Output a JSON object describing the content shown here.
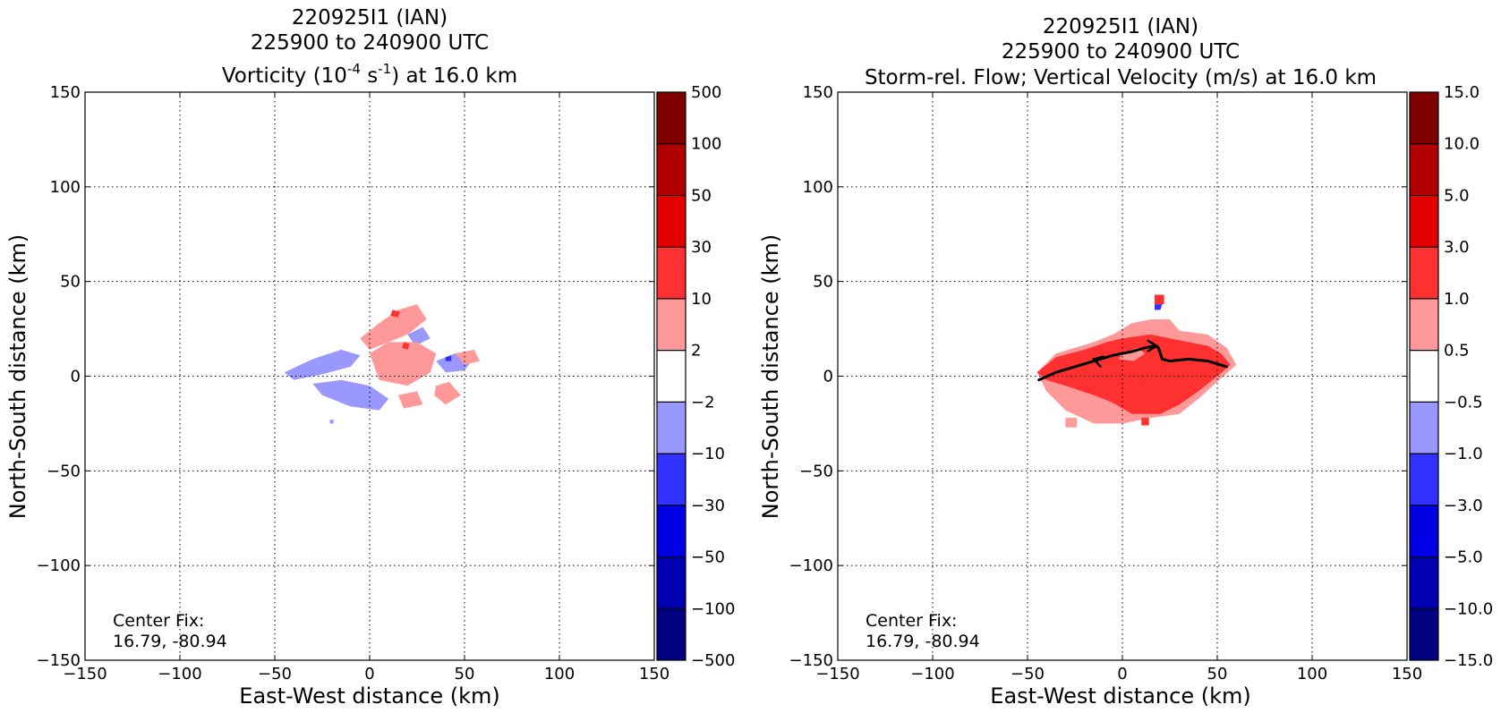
{
  "chart_data": [
    {
      "type": "heatmap",
      "title_lines": [
        "220925I1 (IAN)",
        "225900 to 240900 UTC"
      ],
      "title_line3": {
        "pre": "Vorticity (10",
        "sup1": "-4",
        "mid": " s",
        "sup2": "-1",
        "post": ") at 16.0 km"
      },
      "xlabel": "East-West distance (km)",
      "ylabel": "North-South distance (km)",
      "xlim": [
        -150,
        150
      ],
      "ylim": [
        -150,
        150
      ],
      "xticks": [
        -150,
        -100,
        -50,
        0,
        50,
        100,
        150
      ],
      "yticks": [
        -150,
        -100,
        -50,
        0,
        50,
        100,
        150
      ],
      "grid": true,
      "annotation": [
        "Center Fix:",
        "16.79, -80.94"
      ],
      "colorbar_labels": [
        "500",
        "100",
        "50",
        "30",
        "10",
        "2",
        "−2",
        "−10",
        "−30",
        "−50",
        "−100",
        "−500"
      ],
      "regions": [
        {
          "color": "light-blue",
          "points": [
            [
              -45,
              2
            ],
            [
              -30,
              9
            ],
            [
              -15,
              14
            ],
            [
              -5,
              11
            ],
            [
              -10,
              5
            ],
            [
              -25,
              1
            ],
            [
              -40,
              -2
            ]
          ]
        },
        {
          "color": "light-blue",
          "points": [
            [
              -30,
              -4
            ],
            [
              -15,
              -2
            ],
            [
              0,
              -5
            ],
            [
              10,
              -12
            ],
            [
              5,
              -18
            ],
            [
              -10,
              -16
            ],
            [
              -25,
              -10
            ]
          ]
        },
        {
          "color": "light-blue",
          "points": [
            [
              35,
              8
            ],
            [
              45,
              12
            ],
            [
              55,
              10
            ],
            [
              50,
              3
            ],
            [
              40,
              2
            ]
          ]
        },
        {
          "color": "light-blue",
          "points": [
            [
              20,
              22
            ],
            [
              28,
              26
            ],
            [
              32,
              20
            ],
            [
              24,
              16
            ]
          ]
        },
        {
          "color": "light-pink",
          "points": [
            [
              -5,
              20
            ],
            [
              5,
              28
            ],
            [
              15,
              35
            ],
            [
              25,
              38
            ],
            [
              30,
              30
            ],
            [
              20,
              22
            ],
            [
              10,
              18
            ],
            [
              0,
              14
            ]
          ]
        },
        {
          "color": "light-pink",
          "points": [
            [
              0,
              12
            ],
            [
              10,
              18
            ],
            [
              25,
              18
            ],
            [
              35,
              12
            ],
            [
              32,
              2
            ],
            [
              20,
              -5
            ],
            [
              5,
              -2
            ]
          ]
        },
        {
          "color": "light-pink",
          "points": [
            [
              35,
              -5
            ],
            [
              42,
              -3
            ],
            [
              48,
              -10
            ],
            [
              40,
              -15
            ],
            [
              34,
              -10
            ]
          ]
        },
        {
          "color": "light-pink",
          "points": [
            [
              45,
              12
            ],
            [
              55,
              14
            ],
            [
              58,
              8
            ],
            [
              50,
              6
            ]
          ]
        },
        {
          "color": "light-pink",
          "points": [
            [
              15,
              -10
            ],
            [
              25,
              -8
            ],
            [
              28,
              -15
            ],
            [
              18,
              -17
            ]
          ]
        },
        {
          "color": "red",
          "points": [
            [
              12,
              35
            ],
            [
              16,
              34
            ],
            [
              15,
              31
            ],
            [
              11,
              32
            ]
          ]
        },
        {
          "color": "red",
          "points": [
            [
              18,
              18
            ],
            [
              21,
              17
            ],
            [
              20,
              14
            ],
            [
              17,
              15
            ]
          ]
        },
        {
          "color": "blue",
          "points": [
            [
              40,
              10
            ],
            [
              43,
              11
            ],
            [
              43,
              8
            ],
            [
              40,
              8
            ]
          ]
        },
        {
          "color": "light-blue",
          "points": [
            [
              -21,
              -23
            ],
            [
              -19,
              -23
            ],
            [
              -19,
              -25
            ],
            [
              -21,
              -25
            ]
          ]
        }
      ]
    },
    {
      "type": "heatmap",
      "title_lines": [
        "220925I1 (IAN)",
        "225900 to 240900 UTC",
        "Storm-rel. Flow; Vertical Velocity (m/s) at 16.0 km"
      ],
      "xlabel": "East-West distance (km)",
      "ylabel": "North-South distance (km)",
      "xlim": [
        -150,
        150
      ],
      "ylim": [
        -150,
        150
      ],
      "xticks": [
        -150,
        -100,
        -50,
        0,
        50,
        100,
        150
      ],
      "yticks": [
        -150,
        -100,
        -50,
        0,
        50,
        100,
        150
      ],
      "grid": true,
      "annotation": [
        "Center Fix:",
        "16.79, -80.94"
      ],
      "colorbar_labels": [
        "15.0",
        "10.0",
        "5.0",
        "3.0",
        "1.0",
        "0.5",
        "−0.5",
        "−1.0",
        "−3.0",
        "−5.0",
        "−10.0",
        "−15.0"
      ],
      "regions": [
        {
          "color": "light-pink",
          "points": [
            [
              -45,
              2
            ],
            [
              -35,
              12
            ],
            [
              -15,
              18
            ],
            [
              -5,
              22
            ],
            [
              5,
              28
            ],
            [
              15,
              30
            ],
            [
              25,
              30
            ],
            [
              30,
              24
            ],
            [
              45,
              22
            ],
            [
              55,
              15
            ],
            [
              60,
              6
            ],
            [
              50,
              -3
            ],
            [
              40,
              -12
            ],
            [
              30,
              -20
            ],
            [
              15,
              -22
            ],
            [
              0,
              -25
            ],
            [
              -15,
              -25
            ],
            [
              -30,
              -18
            ],
            [
              -40,
              -8
            ]
          ]
        },
        {
          "color": "red",
          "points": [
            [
              -45,
              2
            ],
            [
              -35,
              10
            ],
            [
              -20,
              14
            ],
            [
              -8,
              18
            ],
            [
              0,
              20
            ],
            [
              15,
              22
            ],
            [
              25,
              20
            ],
            [
              35,
              18
            ],
            [
              45,
              16
            ],
            [
              52,
              12
            ],
            [
              57,
              6
            ],
            [
              50,
              0
            ],
            [
              40,
              -8
            ],
            [
              30,
              -15
            ],
            [
              20,
              -20
            ],
            [
              5,
              -20
            ],
            [
              -5,
              -14
            ],
            [
              -15,
              -10
            ],
            [
              -30,
              -5
            ],
            [
              -40,
              -2
            ]
          ]
        },
        {
          "color": "light-pink",
          "points": [
            [
              0,
              12
            ],
            [
              8,
              15
            ],
            [
              12,
              12
            ],
            [
              6,
              8
            ],
            [
              -2,
              9
            ]
          ]
        },
        {
          "color": "red",
          "points": [
            [
              17,
              43
            ],
            [
              22,
              43
            ],
            [
              22,
              38
            ],
            [
              17,
              38
            ]
          ]
        },
        {
          "color": "blue",
          "points": [
            [
              17,
              38
            ],
            [
              21,
              38
            ],
            [
              20,
              35
            ],
            [
              17,
              35
            ]
          ]
        },
        {
          "color": "light-pink",
          "points": [
            [
              -30,
              -22
            ],
            [
              -24,
              -22
            ],
            [
              -24,
              -27
            ],
            [
              -30,
              -27
            ]
          ]
        },
        {
          "color": "red",
          "points": [
            [
              10,
              -22
            ],
            [
              14,
              -22
            ],
            [
              14,
              -26
            ],
            [
              10,
              -26
            ]
          ]
        }
      ],
      "streamline": {
        "points": [
          [
            -44,
            -2
          ],
          [
            -35,
            2
          ],
          [
            -25,
            5
          ],
          [
            -15,
            8
          ],
          [
            -5,
            11
          ],
          [
            5,
            13
          ],
          [
            12,
            15
          ],
          [
            17,
            16
          ],
          [
            19,
            15
          ],
          [
            20,
            12
          ],
          [
            21,
            9
          ],
          [
            25,
            8
          ],
          [
            35,
            9
          ],
          [
            45,
            8
          ],
          [
            55,
            5
          ]
        ],
        "arrows": [
          [
            -15,
            9,
            -1,
            0.3
          ],
          [
            18,
            16,
            1,
            0
          ]
        ]
      }
    }
  ],
  "colors": {
    "colorbar": [
      "#800000",
      "#b20000",
      "#e40000",
      "#ff3030",
      "#ff9898",
      "#ffffff",
      "#9898ff",
      "#3030ff",
      "#0000e4",
      "#0000b2",
      "#000080"
    ],
    "fills": {
      "light-blue": "#9898ff",
      "light-pink": "#ff9898",
      "red": "#ff3030",
      "blue": "#3030ff"
    }
  }
}
